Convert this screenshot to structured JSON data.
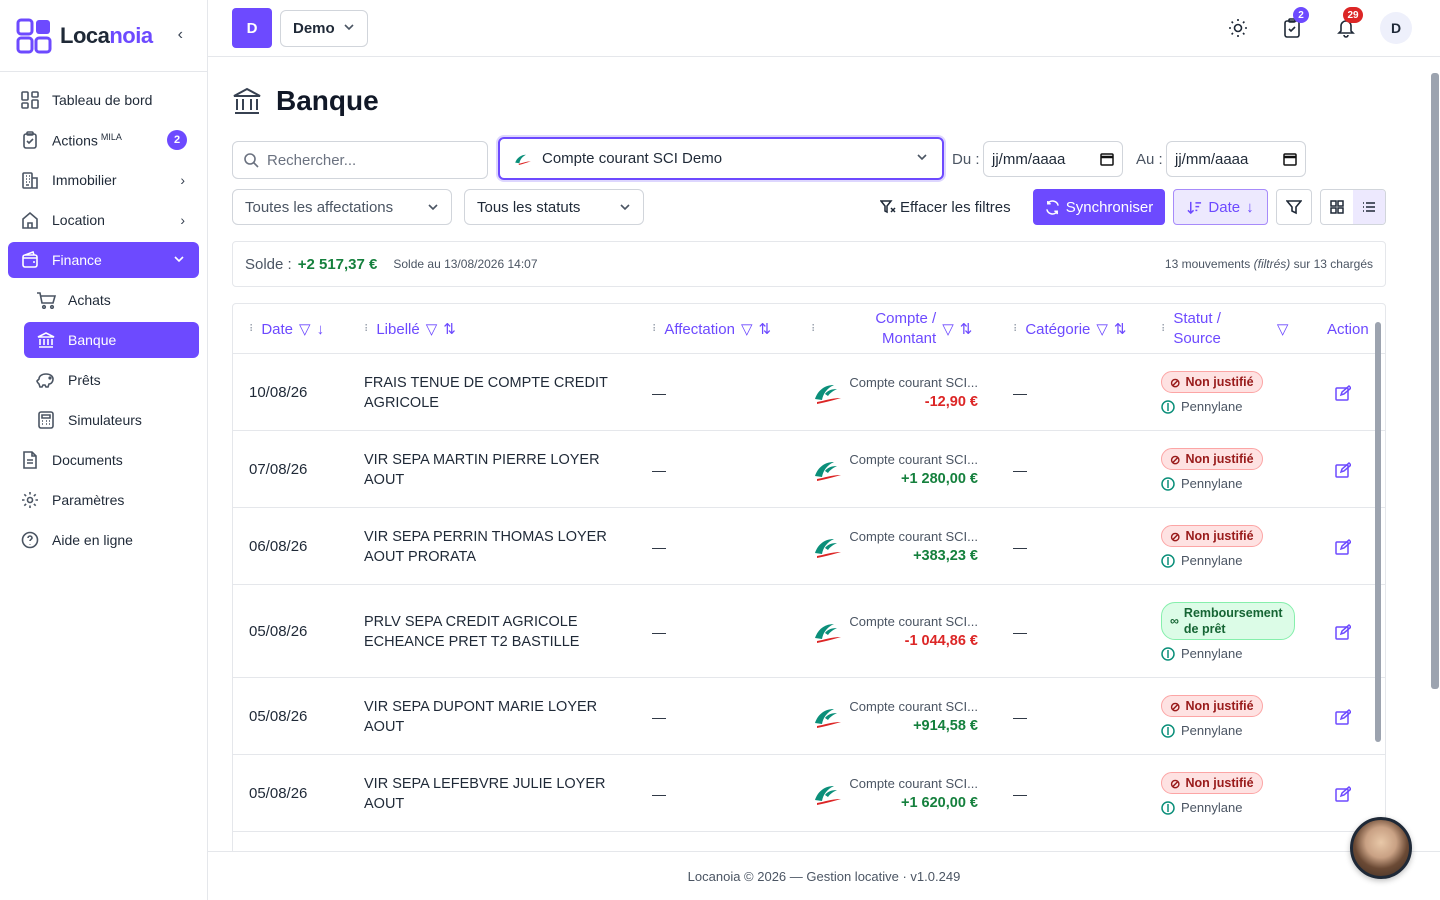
{
  "app": {
    "name_part1": "Loca",
    "name_part2": "noia"
  },
  "sidebar": {
    "items": [
      {
        "label": "Tableau de bord"
      },
      {
        "label": "Actions",
        "sup": "MILA",
        "badge": "2"
      },
      {
        "label": "Immobilier"
      },
      {
        "label": "Location"
      },
      {
        "label": "Finance"
      },
      {
        "label": "Achats"
      },
      {
        "label": "Banque"
      },
      {
        "label": "Prêts"
      },
      {
        "label": "Simulateurs"
      },
      {
        "label": "Documents"
      },
      {
        "label": "Paramètres"
      },
      {
        "label": "Aide en ligne"
      }
    ]
  },
  "topbar": {
    "entity_initial": "D",
    "entity_name": "Demo",
    "tasks_badge": "2",
    "notif_badge": "29",
    "avatar_initial": "D"
  },
  "page": {
    "title": "Banque"
  },
  "filters": {
    "search_placeholder": "Rechercher...",
    "account": "Compte courant SCI Demo",
    "du_label": "Du :",
    "au_label": "Au :",
    "date_placeholder": "jj/mm/aaaa",
    "affectation": "Toutes les affectations",
    "statut": "Tous les statuts",
    "clear": "Effacer les filtres",
    "sync": "Synchroniser",
    "sort": "Date"
  },
  "solde": {
    "label": "Solde :",
    "value": "+2 517,37 €",
    "at": "Solde au 13/08/2026 14:07",
    "count_a": "13 mouvements ",
    "count_b": "(filtrés)",
    "count_c": " sur 13 chargés"
  },
  "table": {
    "headers": {
      "date": "Date",
      "libelle": "Libellé",
      "affectation": "Affectation",
      "compte_l1": "Compte /",
      "compte_l2": "Montant",
      "categorie": "Catégorie",
      "statut_l1": "Statut /",
      "statut_l2": "Source",
      "action": "Action"
    },
    "rows": [
      {
        "date": "10/08/26",
        "libelle": "FRAIS TENUE DE COMPTE CREDIT AGRICOLE",
        "affectation": "—",
        "compte": "Compte courant SCI...",
        "montant": "-12,90 €",
        "categorie": "—",
        "statut": "Non justifié",
        "source": "Pennylane"
      },
      {
        "date": "07/08/26",
        "libelle": "VIR SEPA MARTIN PIERRE LOYER AOUT",
        "affectation": "—",
        "compte": "Compte courant SCI...",
        "montant": "+1 280,00 €",
        "categorie": "—",
        "statut": "Non justifié",
        "source": "Pennylane"
      },
      {
        "date": "06/08/26",
        "libelle": "VIR SEPA PERRIN THOMAS LOYER AOUT PRORATA",
        "affectation": "—",
        "compte": "Compte courant SCI...",
        "montant": "+383,23 €",
        "categorie": "—",
        "statut": "Non justifié",
        "source": "Pennylane"
      },
      {
        "date": "05/08/26",
        "libelle": "PRLV SEPA CREDIT AGRICOLE ECHEANCE PRET T2 BASTILLE",
        "affectation": "—",
        "compte": "Compte courant SCI...",
        "montant": "-1 044,86 €",
        "categorie": "—",
        "statut": "Remboursement de prêt",
        "source": "Pennylane"
      },
      {
        "date": "05/08/26",
        "libelle": "VIR SEPA DUPONT MARIE LOYER AOUT",
        "affectation": "—",
        "compte": "Compte courant SCI...",
        "montant": "+914,58 €",
        "categorie": "—",
        "statut": "Non justifié",
        "source": "Pennylane"
      },
      {
        "date": "05/08/26",
        "libelle": "VIR SEPA LEFEBVRE JULIE LOYER AOUT",
        "affectation": "—",
        "compte": "Compte courant SCI...",
        "montant": "+1 620,00 €",
        "categorie": "—",
        "statut": "Non justifié",
        "source": "Pennylane"
      }
    ]
  },
  "footer": {
    "text": "Locanoia © 2026 — Gestion locative · v1.0.249"
  },
  "colors": {
    "accent": "#6d4aff",
    "positive": "#15803d",
    "negative": "#dc2626"
  }
}
